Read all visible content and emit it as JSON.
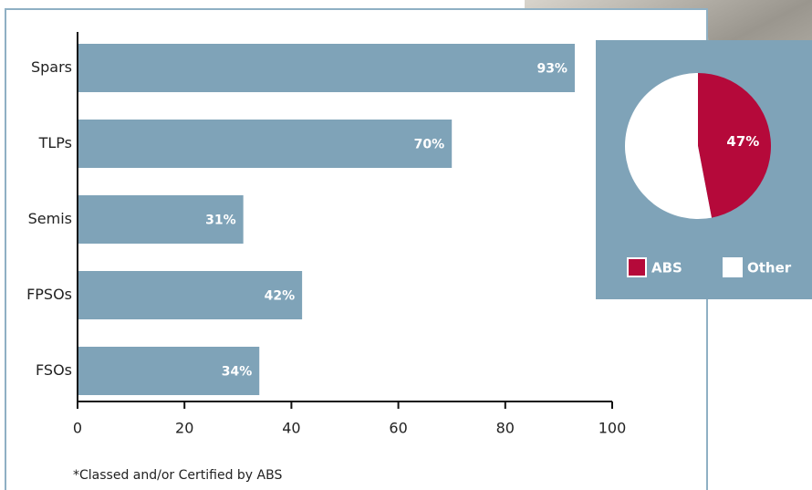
{
  "chart_data": [
    {
      "type": "bar",
      "orientation": "horizontal",
      "categories": [
        "Spars",
        "TLPs",
        "Semis",
        "FPSOs",
        "FSOs"
      ],
      "values": [
        93,
        70,
        31,
        42,
        34
      ],
      "value_labels": [
        "93%",
        "70%",
        "31%",
        "42%",
        "34%"
      ],
      "color": "#7fa3b8",
      "xlim": [
        0,
        100
      ],
      "xticks": [
        0,
        20,
        40,
        60,
        80,
        100
      ],
      "footnote": "*Classed and/or Certified by ABS"
    },
    {
      "type": "pie",
      "categories": [
        "ABS",
        "Other"
      ],
      "values": [
        47,
        53
      ],
      "value_labels": [
        "47%",
        null
      ],
      "colors": [
        "#b5093a",
        "#ffffff"
      ],
      "legend": "bottom"
    }
  ]
}
